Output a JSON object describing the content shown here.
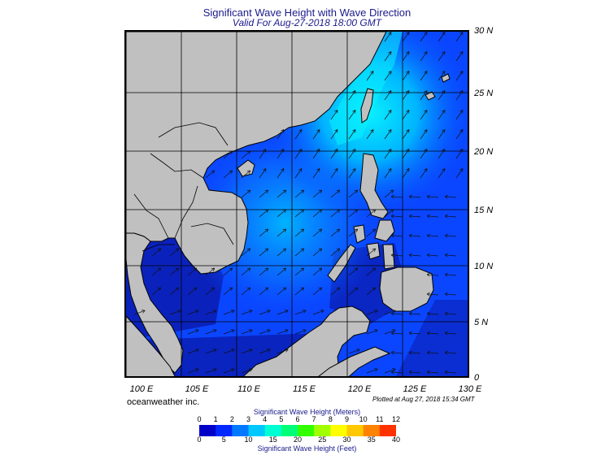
{
  "title": "Significant Wave Height with Wave Direction",
  "subtitle": "Valid For Aug-27-2018 18:00 GMT",
  "lat_labels": [
    "30 N",
    "25 N",
    "20 N",
    "15 N",
    "10 N",
    "5 N",
    "0"
  ],
  "lon_labels": [
    "100 E",
    "105 E",
    "110 E",
    "115 E",
    "120 E",
    "125 E",
    "130 E"
  ],
  "credit": "oceanweather inc.",
  "plotted": "Plotted at Aug 27, 2018 15:34 GMT",
  "colorbar": {
    "title_meters": "Significant Wave Height (Meters)",
    "title_feet": "Significant Wave Height (Feet)",
    "meter_ticks": [
      "0",
      "1",
      "2",
      "3",
      "4",
      "5",
      "6",
      "7",
      "8",
      "9",
      "10",
      "11",
      "12"
    ],
    "feet_ticks": [
      "0",
      "5",
      "10",
      "15",
      "20",
      "25",
      "30",
      "35",
      "40"
    ],
    "colors": [
      "#0000c8",
      "#0028ff",
      "#0078ff",
      "#00c8ff",
      "#00ffd2",
      "#00ff78",
      "#32ff00",
      "#a0ff00",
      "#ffff00",
      "#ffc800",
      "#ff8200",
      "#ff3200"
    ]
  },
  "map_colors": {
    "land": "#c0c0c0",
    "sea_deep": "#0a1eb4",
    "sea_mid": "#0a46ff",
    "sea_bright": "#00b4ff",
    "sea_cyan": "#0af0ff"
  }
}
